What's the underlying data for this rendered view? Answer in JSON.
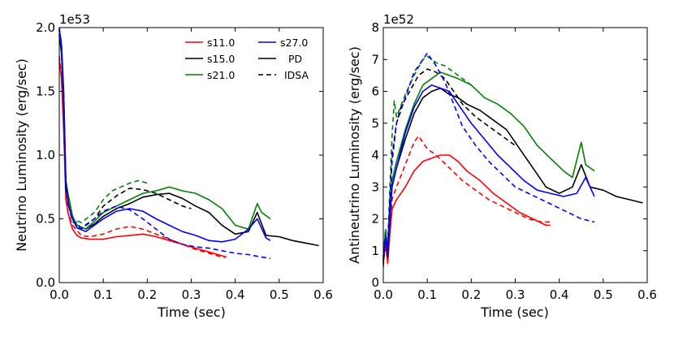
{
  "chart_data": [
    {
      "type": "line",
      "ylabel": "Neutrino Luminosity (erg/sec)",
      "xlabel": "Time (sec)",
      "offset_text": "1e53",
      "xlim": [
        0.0,
        0.6
      ],
      "ylim": [
        0.0,
        2.0
      ],
      "x_ticks": [
        0.0,
        0.1,
        0.2,
        0.3,
        0.4,
        0.5,
        0.6
      ],
      "x_tick_labels": [
        "0.0",
        "0.1",
        "0.2",
        "0.3",
        "0.4",
        "0.5",
        "0.6"
      ],
      "y_ticks": [
        0.0,
        0.5,
        1.0,
        1.5,
        2.0
      ],
      "y_tick_labels": [
        "0.0",
        "0.5",
        "1.0",
        "1.5",
        "2.0"
      ],
      "legend": {
        "position": "top-right",
        "entries": [
          {
            "label": "s11.0",
            "color": "#ff0000",
            "style": "solid"
          },
          {
            "label": "s15.0",
            "color": "#000000",
            "style": "solid"
          },
          {
            "label": "s21.0",
            "color": "#008000",
            "style": "solid"
          },
          {
            "label": "s27.0",
            "color": "#0000ff",
            "style": "solid"
          },
          {
            "label": "PD",
            "color": "#000000",
            "style": "solid"
          },
          {
            "label": "IDSA",
            "color": "#000000",
            "style": "dashed"
          }
        ]
      },
      "series": [
        {
          "name": "s11.0 PD",
          "color": "#ff0000",
          "style": "solid",
          "x": [
            0.0,
            0.005,
            0.01,
            0.015,
            0.02,
            0.025,
            0.03,
            0.04,
            0.05,
            0.07,
            0.1,
            0.13,
            0.16,
            0.19,
            0.22,
            0.25,
            0.28,
            0.31,
            0.34,
            0.37,
            0.38
          ],
          "y": [
            1.75,
            1.6,
            1.2,
            0.65,
            0.55,
            0.48,
            0.42,
            0.37,
            0.35,
            0.34,
            0.34,
            0.36,
            0.37,
            0.38,
            0.36,
            0.33,
            0.3,
            0.27,
            0.24,
            0.21,
            0.2
          ]
        },
        {
          "name": "s11.0 IDSA",
          "color": "#ff0000",
          "style": "dashed",
          "x": [
            0.0,
            0.005,
            0.01,
            0.015,
            0.02,
            0.03,
            0.05,
            0.07,
            0.1,
            0.13,
            0.16,
            0.19,
            0.22,
            0.25,
            0.28,
            0.31,
            0.34,
            0.37,
            0.38
          ],
          "y": [
            1.78,
            1.62,
            1.25,
            0.7,
            0.55,
            0.45,
            0.37,
            0.36,
            0.38,
            0.42,
            0.44,
            0.42,
            0.38,
            0.34,
            0.3,
            0.26,
            0.23,
            0.2,
            0.2
          ]
        },
        {
          "name": "s15.0 PD",
          "color": "#000000",
          "style": "solid",
          "x": [
            0.0,
            0.005,
            0.01,
            0.015,
            0.02,
            0.03,
            0.04,
            0.06,
            0.08,
            0.1,
            0.13,
            0.16,
            0.19,
            0.22,
            0.25,
            0.28,
            0.31,
            0.34,
            0.37,
            0.4,
            0.43,
            0.45,
            0.47,
            0.5,
            0.53,
            0.56,
            0.59
          ],
          "y": [
            1.95,
            1.8,
            1.4,
            0.72,
            0.68,
            0.52,
            0.45,
            0.42,
            0.46,
            0.52,
            0.58,
            0.62,
            0.67,
            0.69,
            0.7,
            0.66,
            0.6,
            0.55,
            0.45,
            0.38,
            0.4,
            0.55,
            0.37,
            0.36,
            0.33,
            0.31,
            0.29
          ]
        },
        {
          "name": "s15.0 IDSA",
          "color": "#000000",
          "style": "dashed",
          "x": [
            0.0,
            0.005,
            0.01,
            0.015,
            0.02,
            0.03,
            0.05,
            0.08,
            0.1,
            0.13,
            0.16,
            0.19,
            0.22,
            0.25,
            0.28,
            0.3
          ],
          "y": [
            1.95,
            1.82,
            1.45,
            0.75,
            0.62,
            0.5,
            0.43,
            0.5,
            0.6,
            0.68,
            0.74,
            0.73,
            0.7,
            0.65,
            0.6,
            0.58
          ]
        },
        {
          "name": "s21.0 PD",
          "color": "#008000",
          "style": "solid",
          "x": [
            0.0,
            0.005,
            0.01,
            0.015,
            0.02,
            0.03,
            0.04,
            0.06,
            0.08,
            0.1,
            0.13,
            0.16,
            0.19,
            0.22,
            0.25,
            0.28,
            0.31,
            0.34,
            0.37,
            0.4,
            0.43,
            0.45,
            0.46,
            0.48
          ],
          "y": [
            1.98,
            1.85,
            1.5,
            0.8,
            0.7,
            0.52,
            0.45,
            0.42,
            0.48,
            0.55,
            0.6,
            0.65,
            0.7,
            0.72,
            0.75,
            0.72,
            0.7,
            0.65,
            0.58,
            0.45,
            0.42,
            0.62,
            0.55,
            0.5
          ]
        },
        {
          "name": "s21.0 IDSA",
          "color": "#008000",
          "style": "dashed",
          "x": [
            0.0,
            0.005,
            0.01,
            0.015,
            0.02,
            0.03,
            0.05,
            0.08,
            0.1,
            0.12,
            0.14,
            0.16,
            0.18,
            0.2
          ],
          "y": [
            1.98,
            1.88,
            1.5,
            0.8,
            0.65,
            0.5,
            0.47,
            0.55,
            0.65,
            0.72,
            0.75,
            0.78,
            0.8,
            0.78
          ]
        },
        {
          "name": "s27.0 PD",
          "color": "#0000ff",
          "style": "solid",
          "x": [
            0.0,
            0.005,
            0.01,
            0.015,
            0.02,
            0.03,
            0.04,
            0.06,
            0.08,
            0.1,
            0.13,
            0.16,
            0.19,
            0.22,
            0.25,
            0.28,
            0.31,
            0.34,
            0.37,
            0.4,
            0.43,
            0.45,
            0.47,
            0.48
          ],
          "y": [
            1.99,
            1.85,
            1.45,
            0.78,
            0.62,
            0.5,
            0.43,
            0.4,
            0.45,
            0.5,
            0.56,
            0.58,
            0.56,
            0.5,
            0.45,
            0.4,
            0.37,
            0.33,
            0.32,
            0.34,
            0.42,
            0.5,
            0.35,
            0.33
          ]
        },
        {
          "name": "s27.0 IDSA",
          "color": "#0000ff",
          "style": "dashed",
          "x": [
            0.0,
            0.005,
            0.01,
            0.015,
            0.02,
            0.03,
            0.05,
            0.08,
            0.1,
            0.13,
            0.16,
            0.19,
            0.22,
            0.25,
            0.28,
            0.31,
            0.34,
            0.37,
            0.4,
            0.43,
            0.46,
            0.48
          ],
          "y": [
            2.0,
            1.87,
            1.5,
            0.8,
            0.62,
            0.48,
            0.42,
            0.5,
            0.56,
            0.6,
            0.57,
            0.5,
            0.42,
            0.34,
            0.3,
            0.28,
            0.27,
            0.25,
            0.23,
            0.22,
            0.2,
            0.19
          ]
        }
      ]
    },
    {
      "type": "line",
      "ylabel": "Antineutrino Luminosity (erg/sec)",
      "xlabel": "Time (sec)",
      "offset_text": "1e52",
      "xlim": [
        0.0,
        0.6
      ],
      "ylim": [
        0,
        8
      ],
      "x_ticks": [
        0.0,
        0.1,
        0.2,
        0.3,
        0.4,
        0.5,
        0.6
      ],
      "x_tick_labels": [
        "0.0",
        "0.1",
        "0.2",
        "0.3",
        "0.4",
        "0.5",
        "0.6"
      ],
      "y_ticks": [
        0,
        1,
        2,
        3,
        4,
        5,
        6,
        7,
        8
      ],
      "y_tick_labels": [
        "0",
        "1",
        "2",
        "3",
        "4",
        "5",
        "6",
        "7",
        "8"
      ],
      "series": [
        {
          "name": "s11.0 PD",
          "color": "#ff0000",
          "style": "solid",
          "x": [
            0.0,
            0.005,
            0.01,
            0.015,
            0.02,
            0.03,
            0.05,
            0.07,
            0.09,
            0.11,
            0.13,
            0.15,
            0.17,
            0.19,
            0.22,
            0.25,
            0.28,
            0.31,
            0.34,
            0.37,
            0.38
          ],
          "y": [
            0.6,
            1.3,
            0.6,
            1.5,
            2.3,
            2.6,
            3.0,
            3.5,
            3.8,
            3.9,
            4.0,
            4.0,
            3.8,
            3.5,
            3.2,
            2.8,
            2.5,
            2.2,
            2.0,
            1.8,
            1.8
          ]
        },
        {
          "name": "s11.0 IDSA",
          "color": "#ff0000",
          "style": "dashed",
          "x": [
            0.0,
            0.005,
            0.01,
            0.015,
            0.02,
            0.03,
            0.05,
            0.07,
            0.08,
            0.1,
            0.12,
            0.15,
            0.18,
            0.21,
            0.24,
            0.27,
            0.3,
            0.33,
            0.36,
            0.38
          ],
          "y": [
            0.5,
            1.2,
            0.7,
            1.7,
            2.6,
            3.0,
            3.7,
            4.4,
            4.6,
            4.2,
            4.0,
            3.6,
            3.2,
            2.9,
            2.6,
            2.4,
            2.2,
            2.0,
            1.9,
            1.9
          ]
        },
        {
          "name": "s15.0 PD",
          "color": "#000000",
          "style": "solid",
          "x": [
            0.0,
            0.005,
            0.01,
            0.015,
            0.02,
            0.03,
            0.05,
            0.07,
            0.09,
            0.11,
            0.13,
            0.15,
            0.17,
            0.19,
            0.22,
            0.25,
            0.28,
            0.31,
            0.34,
            0.37,
            0.4,
            0.43,
            0.45,
            0.47,
            0.5,
            0.53,
            0.56,
            0.59
          ],
          "y": [
            0.8,
            1.5,
            0.8,
            2.0,
            3.0,
            3.6,
            4.5,
            5.3,
            5.8,
            6.0,
            6.1,
            5.9,
            5.8,
            5.6,
            5.4,
            5.1,
            4.8,
            4.2,
            3.6,
            3.0,
            2.8,
            3.0,
            3.7,
            3.0,
            2.9,
            2.7,
            2.6,
            2.5
          ]
        },
        {
          "name": "s15.0 IDSA",
          "color": "#000000",
          "style": "dashed",
          "x": [
            0.0,
            0.005,
            0.01,
            0.015,
            0.02,
            0.03,
            0.04,
            0.06,
            0.08,
            0.1,
            0.12,
            0.14,
            0.16,
            0.18,
            0.21,
            0.24,
            0.27,
            0.3
          ],
          "y": [
            0.6,
            1.5,
            1.0,
            2.5,
            3.8,
            5.0,
            5.5,
            6.0,
            6.5,
            6.7,
            6.6,
            6.4,
            6.0,
            5.6,
            5.2,
            4.9,
            4.6,
            4.3
          ]
        },
        {
          "name": "s21.0 PD",
          "color": "#008000",
          "style": "solid",
          "x": [
            0.0,
            0.005,
            0.01,
            0.015,
            0.02,
            0.03,
            0.05,
            0.07,
            0.09,
            0.11,
            0.13,
            0.15,
            0.17,
            0.2,
            0.23,
            0.26,
            0.29,
            0.32,
            0.35,
            0.38,
            0.41,
            0.43,
            0.45,
            0.46,
            0.48
          ],
          "y": [
            0.8,
            1.6,
            1.0,
            2.2,
            3.2,
            3.8,
            4.8,
            5.6,
            6.2,
            6.4,
            6.6,
            6.5,
            6.4,
            6.2,
            5.8,
            5.6,
            5.3,
            4.9,
            4.3,
            3.9,
            3.5,
            3.3,
            4.4,
            3.7,
            3.5
          ]
        },
        {
          "name": "s21.0 IDSA",
          "color": "#008000",
          "style": "dashed",
          "x": [
            0.0,
            0.005,
            0.01,
            0.015,
            0.02,
            0.025,
            0.03,
            0.05,
            0.07,
            0.09,
            0.1,
            0.12,
            0.14,
            0.16,
            0.18,
            0.2
          ],
          "y": [
            0.7,
            1.7,
            1.2,
            3.0,
            4.6,
            5.7,
            5.2,
            5.9,
            6.5,
            7.0,
            7.1,
            6.9,
            6.8,
            6.6,
            6.4,
            6.2
          ]
        },
        {
          "name": "s27.0 PD",
          "color": "#0000ff",
          "style": "solid",
          "x": [
            0.0,
            0.005,
            0.01,
            0.015,
            0.02,
            0.03,
            0.05,
            0.07,
            0.09,
            0.11,
            0.13,
            0.15,
            0.17,
            0.2,
            0.23,
            0.26,
            0.29,
            0.32,
            0.35,
            0.38,
            0.41,
            0.44,
            0.46,
            0.48
          ],
          "y": [
            0.7,
            1.4,
            0.9,
            2.0,
            3.0,
            3.6,
            4.7,
            5.5,
            6.0,
            6.2,
            6.1,
            6.0,
            5.6,
            5.0,
            4.5,
            4.0,
            3.6,
            3.2,
            2.9,
            2.8,
            2.7,
            2.8,
            3.3,
            2.7
          ]
        },
        {
          "name": "s27.0 IDSA",
          "color": "#0000ff",
          "style": "dashed",
          "x": [
            0.0,
            0.005,
            0.01,
            0.015,
            0.02,
            0.03,
            0.05,
            0.07,
            0.09,
            0.1,
            0.12,
            0.14,
            0.16,
            0.18,
            0.21,
            0.24,
            0.27,
            0.3,
            0.33,
            0.36,
            0.39,
            0.42,
            0.45,
            0.48
          ],
          "y": [
            0.7,
            1.5,
            1.1,
            2.6,
            4.0,
            5.0,
            5.8,
            6.6,
            7.0,
            7.2,
            6.8,
            6.3,
            5.6,
            4.9,
            4.3,
            3.8,
            3.4,
            3.0,
            2.8,
            2.6,
            2.4,
            2.2,
            2.0,
            1.9
          ]
        }
      ]
    }
  ]
}
